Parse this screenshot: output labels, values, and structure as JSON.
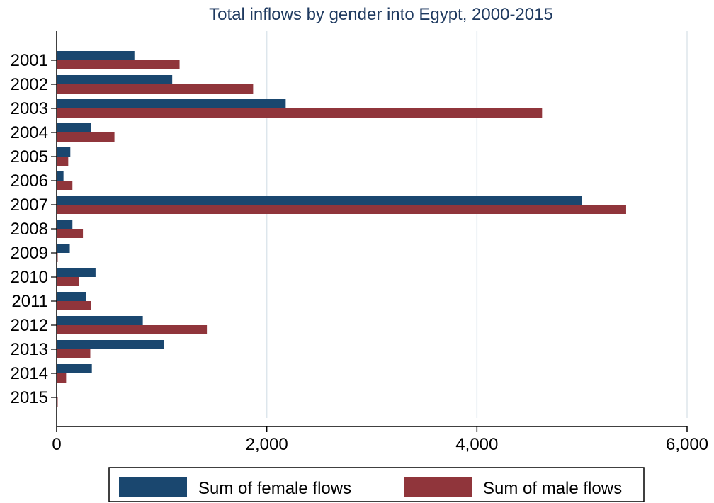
{
  "chart_data": {
    "type": "bar",
    "orientation": "horizontal",
    "title": "Total inflows by gender into Egypt, 2000-2015",
    "xlabel": "",
    "ylabel": "",
    "categories": [
      "2001",
      "2002",
      "2003",
      "2004",
      "2005",
      "2006",
      "2007",
      "2008",
      "2009",
      "2010",
      "2011",
      "2012",
      "2013",
      "2014",
      "2015"
    ],
    "series": [
      {
        "name": "Sum of female flows",
        "color": "#1a476f",
        "values": [
          740,
          1100,
          2180,
          330,
          130,
          65,
          5000,
          150,
          125,
          370,
          280,
          820,
          1020,
          335,
          5
        ]
      },
      {
        "name": "Sum of male flows",
        "color": "#90353b",
        "values": [
          1170,
          1870,
          4620,
          550,
          110,
          150,
          5420,
          250,
          10,
          210,
          330,
          1430,
          320,
          90,
          10
        ]
      }
    ],
    "xlim": [
      0,
      6000
    ],
    "xticks": [
      0,
      2000,
      4000,
      6000
    ],
    "xtick_labels": [
      "0",
      "2,000",
      "4,000",
      "6,000"
    ],
    "grid": "vertical",
    "grid_color": "#dde6ec",
    "title_color": "#1f3a60",
    "legend_position": "bottom"
  }
}
